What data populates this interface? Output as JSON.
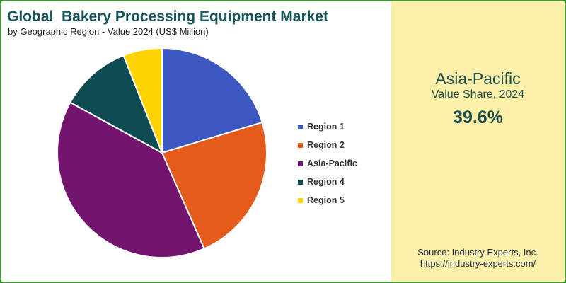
{
  "header": {
    "title": "Global  Bakery Processing Equipment Market",
    "subtitle": "by Geographic Region - Value 2024 (US$ Miilion)"
  },
  "highlight": {
    "region": "Asia-Pacific",
    "label": "Value Share, 2024",
    "value": "39.6%"
  },
  "source": {
    "line1": "Source: Industry Experts, Inc.",
    "line2": "https://industry-experts.com/"
  },
  "colors": {
    "border": "#4a8f3c",
    "panel": "#fdf1a9",
    "title": "#16555a"
  },
  "chart_data": {
    "type": "pie",
    "title": "Global  Bakery Processing Equipment Market",
    "subtitle": "by Geographic Region - Value 2024 (US$ Miilion)",
    "legend_position": "right",
    "slices": [
      {
        "name": "Region 1",
        "value": 20.3,
        "color": "#3c57c0"
      },
      {
        "name": "Region 2",
        "value": 23.1,
        "color": "#e45b1c"
      },
      {
        "name": "Asia-Pacific",
        "value": 39.6,
        "color": "#73146f"
      },
      {
        "name": "Region 4",
        "value": 11.0,
        "color": "#0d4c53"
      },
      {
        "name": "Region 5",
        "value": 6.0,
        "color": "#ffd300"
      }
    ]
  }
}
